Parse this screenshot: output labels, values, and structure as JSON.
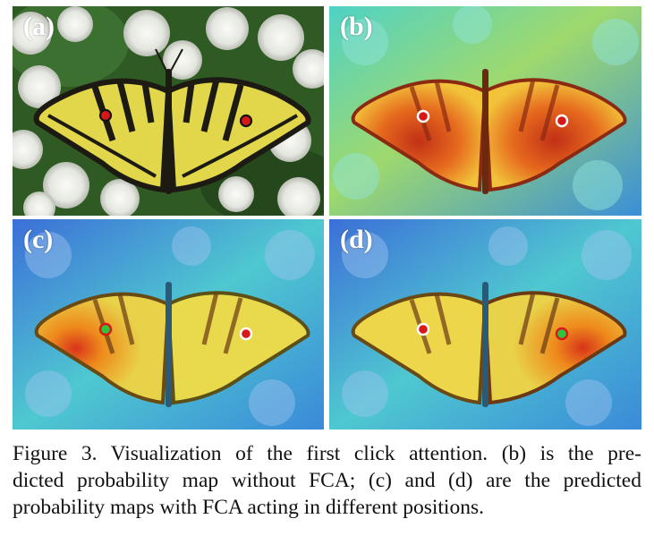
{
  "panels": [
    {
      "id": "a",
      "label": "(a)"
    },
    {
      "id": "b",
      "label": "(b)"
    },
    {
      "id": "c",
      "label": "(c)"
    },
    {
      "id": "d",
      "label": "(d)"
    }
  ],
  "caption": {
    "lines": [
      "Figure 3. Visualization of the first click attention. (b) is the pre-",
      "dicted probability map without FCA; (c) and (d) are the predicted",
      "probability maps with FCA acting in different positions."
    ]
  },
  "colors": {
    "click_red": "#d81818",
    "click_green": "#2fc43a",
    "marker_ring_dark": "#111111",
    "marker_ring_white": "#ffffff",
    "wing_yellow": "#e2d74a",
    "wing_black": "#1c1a12",
    "heat_red": "#d8341a",
    "heat_orange": "#ee8a1c",
    "heat_blue": "#3c6fd8",
    "heat_cyan": "#52d8c8"
  }
}
